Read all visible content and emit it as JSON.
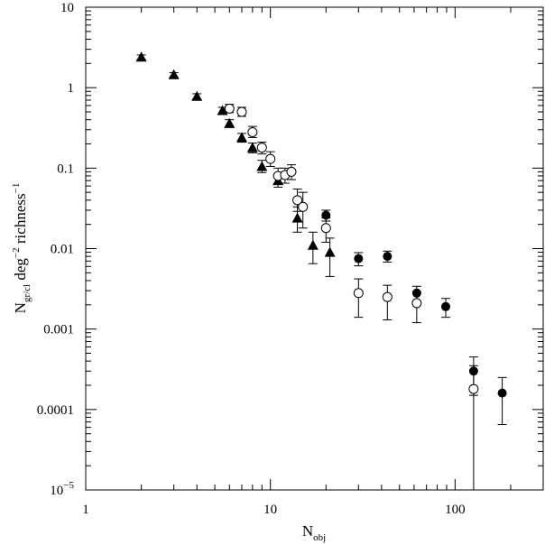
{
  "chart_data": {
    "type": "scatter",
    "title": "",
    "xscale": "log",
    "yscale": "log",
    "xlim": [
      1,
      300
    ],
    "ylim": [
      1e-05,
      10
    ],
    "grid": false,
    "legend": "none",
    "x_ticks": [
      {
        "value": 1,
        "label": "1"
      },
      {
        "value": 10,
        "label": "10"
      },
      {
        "value": 100,
        "label": "100"
      }
    ],
    "y_ticks": [
      {
        "value": 10,
        "label": "10",
        "exp": ""
      },
      {
        "value": 1,
        "label": "1",
        "exp": ""
      },
      {
        "value": 0.1,
        "label": "0.1",
        "exp": ""
      },
      {
        "value": 0.01,
        "label": "0.01",
        "exp": ""
      },
      {
        "value": 0.001,
        "label": "0.001",
        "exp": ""
      },
      {
        "value": 0.0001,
        "label": "0.0001",
        "exp": ""
      },
      {
        "value": 1e-05,
        "label": "10",
        "exp": "−5"
      }
    ],
    "xlabel": {
      "main": "N",
      "sub": "obj"
    },
    "ylabel": {
      "main": "N",
      "sub": "gr/cl",
      "mid": " deg",
      "sup1": "−2",
      "tail": " richness",
      "sup2": "−1"
    },
    "series": [
      {
        "marker": "filled-triangle",
        "points": [
          {
            "x": 2,
            "y": 2.4,
            "lo": 2.25,
            "hi": 2.55
          },
          {
            "x": 3,
            "y": 1.45,
            "lo": 1.36,
            "hi": 1.54
          },
          {
            "x": 4,
            "y": 0.78,
            "lo": 0.72,
            "hi": 0.84
          },
          {
            "x": 5.5,
            "y": 0.52,
            "lo": 0.47,
            "hi": 0.57
          },
          {
            "x": 6,
            "y": 0.36,
            "lo": 0.32,
            "hi": 0.4
          },
          {
            "x": 7,
            "y": 0.24,
            "lo": 0.21,
            "hi": 0.27
          },
          {
            "x": 8,
            "y": 0.18,
            "lo": 0.155,
            "hi": 0.205
          },
          {
            "x": 9,
            "y": 0.105,
            "lo": 0.088,
            "hi": 0.125
          },
          {
            "x": 11,
            "y": 0.07,
            "lo": 0.058,
            "hi": 0.085
          },
          {
            "x": 14,
            "y": 0.024,
            "lo": 0.016,
            "hi": 0.033
          },
          {
            "x": 17,
            "y": 0.011,
            "lo": 0.0065,
            "hi": 0.016
          },
          {
            "x": 21,
            "y": 0.009,
            "lo": 0.0045,
            "hi": 0.0135
          }
        ]
      },
      {
        "marker": "open-circle",
        "points": [
          {
            "x": 6,
            "y": 0.55,
            "lo": 0.49,
            "hi": 0.62
          },
          {
            "x": 7,
            "y": 0.5,
            "lo": 0.44,
            "hi": 0.57
          },
          {
            "x": 8,
            "y": 0.28,
            "lo": 0.24,
            "hi": 0.33
          },
          {
            "x": 9,
            "y": 0.18,
            "lo": 0.15,
            "hi": 0.21
          },
          {
            "x": 10,
            "y": 0.13,
            "lo": 0.105,
            "hi": 0.16
          },
          {
            "x": 11,
            "y": 0.08,
            "lo": 0.063,
            "hi": 0.1
          },
          {
            "x": 12,
            "y": 0.082,
            "lo": 0.065,
            "hi": 0.1
          },
          {
            "x": 13,
            "y": 0.09,
            "lo": 0.072,
            "hi": 0.11
          },
          {
            "x": 14,
            "y": 0.04,
            "lo": 0.029,
            "hi": 0.055
          },
          {
            "x": 15,
            "y": 0.033,
            "lo": 0.018,
            "hi": 0.05
          },
          {
            "x": 20,
            "y": 0.018,
            "lo": 0.012,
            "hi": 0.024
          },
          {
            "x": 30,
            "y": 0.0028,
            "lo": 0.0014,
            "hi": 0.0042
          },
          {
            "x": 43,
            "y": 0.0025,
            "lo": 0.0013,
            "hi": 0.0035
          },
          {
            "x": 62,
            "y": 0.0021,
            "lo": 0.0012,
            "hi": 0.0029
          },
          {
            "x": 126,
            "y": 0.00018,
            "lo": 1e-05,
            "hi": 0.00035
          }
        ]
      },
      {
        "marker": "filled-circle",
        "points": [
          {
            "x": 20,
            "y": 0.026,
            "lo": 0.022,
            "hi": 0.03
          },
          {
            "x": 30,
            "y": 0.0075,
            "lo": 0.0061,
            "hi": 0.0089
          },
          {
            "x": 43,
            "y": 0.008,
            "lo": 0.0068,
            "hi": 0.0093
          },
          {
            "x": 62,
            "y": 0.0028,
            "lo": 0.0022,
            "hi": 0.0034
          },
          {
            "x": 89,
            "y": 0.0019,
            "lo": 0.0014,
            "hi": 0.0024
          },
          {
            "x": 126,
            "y": 0.0003,
            "lo": 0.00015,
            "hi": 0.00045
          },
          {
            "x": 180,
            "y": 0.00016,
            "lo": 6.5e-05,
            "hi": 0.00025
          }
        ]
      }
    ]
  }
}
